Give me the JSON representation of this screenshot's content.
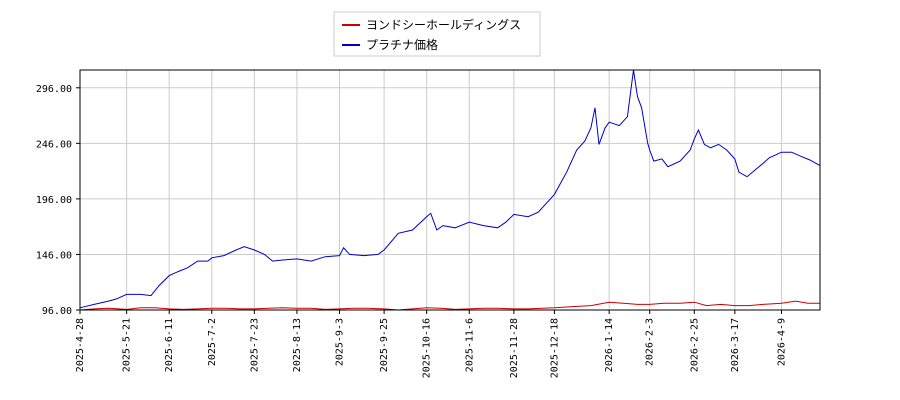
{
  "chart_data": {
    "type": "line",
    "title": "",
    "xlabel": "",
    "ylabel": "",
    "grid": true,
    "legend_position": "top-center",
    "ylim": [
      96,
      312
    ],
    "y_ticks": [
      96,
      146,
      196,
      246,
      296
    ],
    "y_tick_labels": [
      "96.00",
      "146.00",
      "196.00",
      "246.00",
      "296.00"
    ],
    "x_start": "2025-04-28",
    "x_end": "2026-04-28",
    "x_ticks": [
      "2025-4-28",
      "2025-5-21",
      "2025-6-11",
      "2025-7-2",
      "2025-7-23",
      "2025-8-13",
      "2025-9-3",
      "2025-9-25",
      "2025-10-16",
      "2025-11-6",
      "2025-11-28",
      "2025-12-18",
      "2026-1-14",
      "2026-2-3",
      "2026-2-25",
      "2026-3-17",
      "2026-4-9"
    ],
    "x_tick_dates": [
      "2025-04-28",
      "2025-05-21",
      "2025-06-11",
      "2025-07-02",
      "2025-07-23",
      "2025-08-13",
      "2025-09-03",
      "2025-09-25",
      "2025-10-16",
      "2025-11-06",
      "2025-11-28",
      "2025-12-18",
      "2026-01-14",
      "2026-02-03",
      "2026-02-25",
      "2026-03-17",
      "2026-04-09"
    ],
    "series": [
      {
        "name": "ヨンドシーホールディングス",
        "color": "#cc0000",
        "points": [
          [
            "2025-04-28",
            96
          ],
          [
            "2025-05-05",
            97
          ],
          [
            "2025-05-12",
            97.5
          ],
          [
            "2025-05-21",
            96.5
          ],
          [
            "2025-05-28",
            98
          ],
          [
            "2025-06-04",
            98
          ],
          [
            "2025-06-11",
            97
          ],
          [
            "2025-06-18",
            96.5
          ],
          [
            "2025-06-25",
            97
          ],
          [
            "2025-07-02",
            97.5
          ],
          [
            "2025-07-09",
            97.5
          ],
          [
            "2025-07-16",
            97
          ],
          [
            "2025-07-23",
            97
          ],
          [
            "2025-07-30",
            97.5
          ],
          [
            "2025-08-06",
            98
          ],
          [
            "2025-08-13",
            97.5
          ],
          [
            "2025-08-20",
            97.5
          ],
          [
            "2025-08-27",
            96.5
          ],
          [
            "2025-09-03",
            97
          ],
          [
            "2025-09-10",
            97.5
          ],
          [
            "2025-09-17",
            97.5
          ],
          [
            "2025-09-25",
            97
          ],
          [
            "2025-10-02",
            96
          ],
          [
            "2025-10-09",
            97
          ],
          [
            "2025-10-16",
            98
          ],
          [
            "2025-10-23",
            97.5
          ],
          [
            "2025-10-30",
            96.5
          ],
          [
            "2025-11-06",
            97
          ],
          [
            "2025-11-13",
            97.5
          ],
          [
            "2025-11-20",
            97.5
          ],
          [
            "2025-11-28",
            97
          ],
          [
            "2025-12-05",
            97
          ],
          [
            "2025-12-12",
            97.5
          ],
          [
            "2025-12-18",
            98
          ],
          [
            "2025-12-26",
            99
          ],
          [
            "2026-01-05",
            100
          ],
          [
            "2026-01-14",
            103
          ],
          [
            "2026-01-21",
            102
          ],
          [
            "2026-01-28",
            101
          ],
          [
            "2026-02-03",
            101
          ],
          [
            "2026-02-10",
            102
          ],
          [
            "2026-02-18",
            102
          ],
          [
            "2026-02-25",
            103
          ],
          [
            "2026-03-03",
            100
          ],
          [
            "2026-03-10",
            101
          ],
          [
            "2026-03-17",
            100
          ],
          [
            "2026-03-24",
            100
          ],
          [
            "2026-03-31",
            101
          ],
          [
            "2026-04-09",
            102
          ],
          [
            "2026-04-16",
            104
          ],
          [
            "2026-04-22",
            102
          ],
          [
            "2026-04-28",
            102
          ]
        ]
      },
      {
        "name": "プラチナ価格",
        "color": "#0000cc",
        "points": [
          [
            "2025-04-28",
            98
          ],
          [
            "2025-05-05",
            101
          ],
          [
            "2025-05-12",
            104
          ],
          [
            "2025-05-16",
            106
          ],
          [
            "2025-05-21",
            110
          ],
          [
            "2025-05-28",
            110
          ],
          [
            "2025-06-02",
            109
          ],
          [
            "2025-06-06",
            118
          ],
          [
            "2025-06-11",
            127
          ],
          [
            "2025-06-16",
            131
          ],
          [
            "2025-06-20",
            134
          ],
          [
            "2025-06-25",
            140
          ],
          [
            "2025-06-30",
            140
          ],
          [
            "2025-07-02",
            143
          ],
          [
            "2025-07-08",
            145
          ],
          [
            "2025-07-14",
            150
          ],
          [
            "2025-07-18",
            153
          ],
          [
            "2025-07-23",
            150
          ],
          [
            "2025-07-28",
            146
          ],
          [
            "2025-08-01",
            140
          ],
          [
            "2025-08-06",
            141
          ],
          [
            "2025-08-13",
            142
          ],
          [
            "2025-08-20",
            140
          ],
          [
            "2025-08-27",
            144
          ],
          [
            "2025-09-03",
            145
          ],
          [
            "2025-09-05",
            152
          ],
          [
            "2025-09-08",
            146
          ],
          [
            "2025-09-15",
            145
          ],
          [
            "2025-09-22",
            146
          ],
          [
            "2025-09-25",
            150
          ],
          [
            "2025-10-02",
            165
          ],
          [
            "2025-10-09",
            168
          ],
          [
            "2025-10-16",
            180
          ],
          [
            "2025-10-18",
            183
          ],
          [
            "2025-10-21",
            168
          ],
          [
            "2025-10-24",
            172
          ],
          [
            "2025-10-30",
            170
          ],
          [
            "2025-11-06",
            175
          ],
          [
            "2025-11-13",
            172
          ],
          [
            "2025-11-20",
            170
          ],
          [
            "2025-11-24",
            175
          ],
          [
            "2025-11-28",
            182
          ],
          [
            "2025-12-05",
            180
          ],
          [
            "2025-12-10",
            184
          ],
          [
            "2025-12-18",
            200
          ],
          [
            "2025-12-24",
            220
          ],
          [
            "2025-12-29",
            240
          ],
          [
            "2026-01-02",
            248
          ],
          [
            "2026-01-05",
            260
          ],
          [
            "2026-01-07",
            278
          ],
          [
            "2026-01-09",
            245
          ],
          [
            "2026-01-12",
            260
          ],
          [
            "2026-01-14",
            265
          ],
          [
            "2026-01-19",
            262
          ],
          [
            "2026-01-23",
            270
          ],
          [
            "2026-01-26",
            312
          ],
          [
            "2026-01-28",
            288
          ],
          [
            "2026-01-30",
            278
          ],
          [
            "2026-02-02",
            246
          ],
          [
            "2026-02-03",
            240
          ],
          [
            "2026-02-05",
            230
          ],
          [
            "2026-02-09",
            232
          ],
          [
            "2026-02-12",
            225
          ],
          [
            "2026-02-18",
            230
          ],
          [
            "2026-02-23",
            240
          ],
          [
            "2026-02-25",
            250
          ],
          [
            "2026-02-27",
            258
          ],
          [
            "2026-03-02",
            245
          ],
          [
            "2026-03-05",
            242
          ],
          [
            "2026-03-09",
            245
          ],
          [
            "2026-03-13",
            240
          ],
          [
            "2026-03-17",
            232
          ],
          [
            "2026-03-19",
            220
          ],
          [
            "2026-03-23",
            216
          ],
          [
            "2026-03-27",
            222
          ],
          [
            "2026-03-31",
            228
          ],
          [
            "2026-04-03",
            233
          ],
          [
            "2026-04-09",
            238
          ],
          [
            "2026-04-14",
            238
          ],
          [
            "2026-04-19",
            234
          ],
          [
            "2026-04-23",
            231
          ],
          [
            "2026-04-28",
            226
          ]
        ]
      }
    ]
  }
}
